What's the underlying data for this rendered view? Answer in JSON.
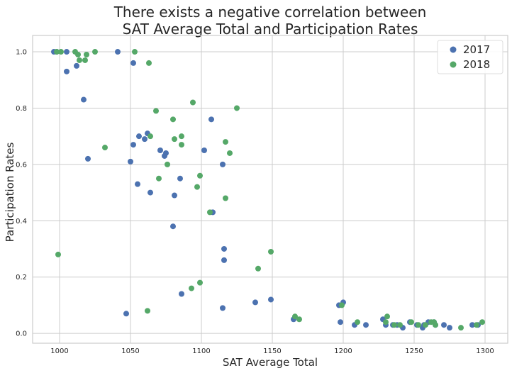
{
  "chart_data": {
    "type": "scatter",
    "title": [
      "There exists a negative correlation between",
      "SAT Average Total and Participation Rates"
    ],
    "xlabel": "SAT Average Total",
    "ylabel": "Participation Rates",
    "xlim": [
      981,
      1316
    ],
    "ylim": [
      -0.035,
      1.058
    ],
    "xticks": [
      1000,
      1050,
      1100,
      1150,
      1200,
      1250,
      1300
    ],
    "yticks": [
      0.0,
      0.2,
      0.4,
      0.6,
      0.8,
      1.0
    ],
    "ytick_labels": [
      "0.0",
      "0.2",
      "0.4",
      "0.6",
      "0.8",
      "1.0"
    ],
    "grid": true,
    "legend_position": "top-right",
    "series": [
      {
        "name": "2017",
        "color": "#4c72b0",
        "points": [
          [
            996,
            1.0
          ],
          [
            998,
            1.0
          ],
          [
            1005,
            1.0
          ],
          [
            1005,
            0.93
          ],
          [
            1012,
            0.95
          ],
          [
            1017,
            0.83
          ],
          [
            1020,
            0.62
          ],
          [
            1041,
            1.0
          ],
          [
            1047,
            0.07
          ],
          [
            1050,
            0.61
          ],
          [
            1052,
            0.96
          ],
          [
            1052,
            0.67
          ],
          [
            1055,
            0.53
          ],
          [
            1056,
            0.7
          ],
          [
            1060,
            0.69
          ],
          [
            1062,
            0.71
          ],
          [
            1064,
            0.5
          ],
          [
            1071,
            0.65
          ],
          [
            1074,
            0.63
          ],
          [
            1075,
            0.64
          ],
          [
            1080,
            0.38
          ],
          [
            1081,
            0.49
          ],
          [
            1085,
            0.55
          ],
          [
            1086,
            0.14
          ],
          [
            1102,
            0.65
          ],
          [
            1107,
            0.76
          ],
          [
            1108,
            0.43
          ],
          [
            1115,
            0.09
          ],
          [
            1115,
            0.6
          ],
          [
            1116,
            0.3
          ],
          [
            1116,
            0.26
          ],
          [
            1138,
            0.11
          ],
          [
            1149,
            0.12
          ],
          [
            1165,
            0.05
          ],
          [
            1197,
            0.1
          ],
          [
            1198,
            0.04
          ],
          [
            1200,
            0.11
          ],
          [
            1208,
            0.03
          ],
          [
            1216,
            0.03
          ],
          [
            1228,
            0.05
          ],
          [
            1230,
            0.03
          ],
          [
            1235,
            0.03
          ],
          [
            1238,
            0.03
          ],
          [
            1242,
            0.02
          ],
          [
            1247,
            0.04
          ],
          [
            1252,
            0.03
          ],
          [
            1256,
            0.02
          ],
          [
            1257,
            0.03
          ],
          [
            1260,
            0.04
          ],
          [
            1264,
            0.04
          ],
          [
            1265,
            0.03
          ],
          [
            1271,
            0.03
          ],
          [
            1275,
            0.02
          ],
          [
            1291,
            0.03
          ],
          [
            1295,
            0.03
          ]
        ]
      },
      {
        "name": "2018",
        "color": "#55a868",
        "points": [
          [
            998,
            1.0
          ],
          [
            999,
            0.28
          ],
          [
            1001,
            1.0
          ],
          [
            1011,
            1.0
          ],
          [
            1013,
            0.99
          ],
          [
            1014,
            0.97
          ],
          [
            1018,
            0.97
          ],
          [
            1019,
            0.99
          ],
          [
            1025,
            1.0
          ],
          [
            1032,
            0.66
          ],
          [
            1053,
            1.0
          ],
          [
            1062,
            0.08
          ],
          [
            1063,
            0.96
          ],
          [
            1064,
            0.7
          ],
          [
            1068,
            0.79
          ],
          [
            1070,
            0.55
          ],
          [
            1076,
            0.6
          ],
          [
            1080,
            0.76
          ],
          [
            1081,
            0.69
          ],
          [
            1086,
            0.7
          ],
          [
            1086,
            0.67
          ],
          [
            1093,
            0.16
          ],
          [
            1094,
            0.82
          ],
          [
            1097,
            0.52
          ],
          [
            1099,
            0.56
          ],
          [
            1099,
            0.18
          ],
          [
            1106,
            0.43
          ],
          [
            1117,
            0.68
          ],
          [
            1117,
            0.48
          ],
          [
            1120,
            0.64
          ],
          [
            1125,
            0.8
          ],
          [
            1140,
            0.23
          ],
          [
            1149,
            0.29
          ],
          [
            1166,
            0.06
          ],
          [
            1169,
            0.05
          ],
          [
            1199,
            0.1
          ],
          [
            1210,
            0.04
          ],
          [
            1230,
            0.04
          ],
          [
            1231,
            0.06
          ],
          [
            1236,
            0.03
          ],
          [
            1240,
            0.03
          ],
          [
            1248,
            0.04
          ],
          [
            1253,
            0.03
          ],
          [
            1258,
            0.03
          ],
          [
            1262,
            0.04
          ],
          [
            1264,
            0.04
          ],
          [
            1265,
            0.03
          ],
          [
            1283,
            0.02
          ],
          [
            1294,
            0.03
          ],
          [
            1298,
            0.04
          ]
        ]
      }
    ]
  }
}
